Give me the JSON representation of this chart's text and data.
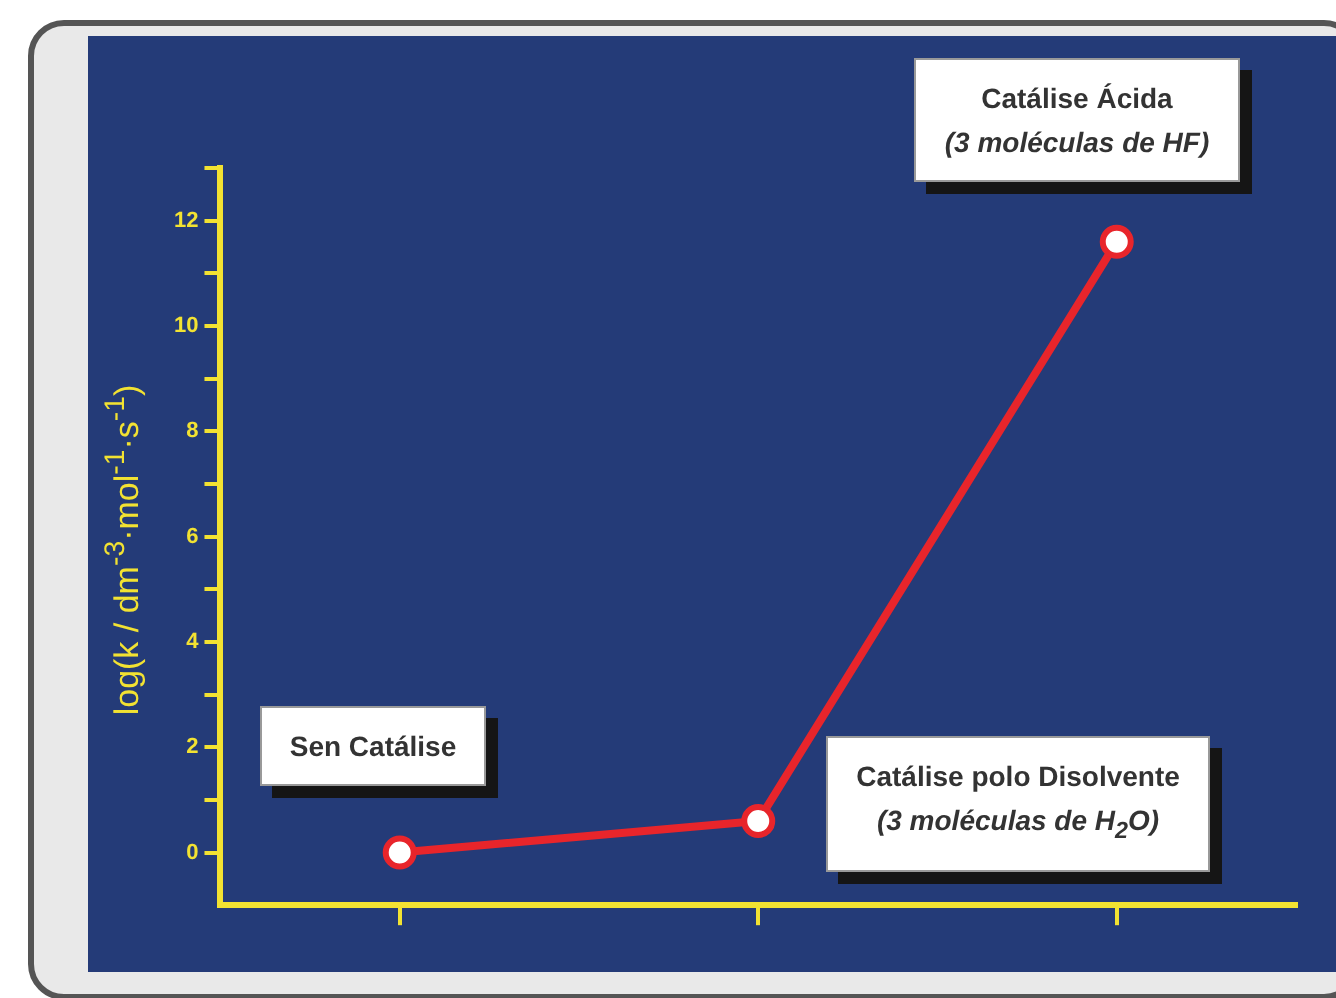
{
  "chart_data": {
    "type": "line",
    "ylabel": "log(k / dm$^{-3}$·mol$^{-1}$·s$^{-1}$)",
    "categories": [
      null,
      null,
      null
    ],
    "series": [
      {
        "color": "#e8252b",
        "values": [
          0.0,
          0.6,
          11.6
        ]
      }
    ],
    "ylim": [
      -1,
      13
    ],
    "yticks": [
      0,
      {
        "value": 1,
        "label": null
      },
      2,
      {
        "value": 3,
        "label": null
      },
      4,
      {
        "value": 5,
        "label": null
      },
      6,
      {
        "value": 7,
        "label": null
      },
      8,
      {
        "value": 9,
        "label": null
      },
      10,
      {
        "value": 11,
        "label": null
      },
      12,
      {
        "value": 13,
        "label": null
      }
    ],
    "annotations": [
      "Sen Catálise",
      "Catálise polo Disolvente\n(3 moléculas de H$_{2}$O)",
      "Catálise Ácida\n(3 moléculas de HF)"
    ],
    "grid": false,
    "legend": false,
    "marker": "circle",
    "line_style": "solid"
  }
}
